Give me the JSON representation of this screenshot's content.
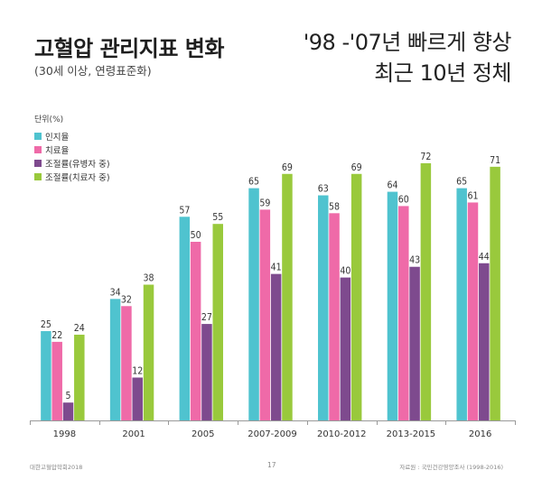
{
  "header": {
    "title": "고혈압 관리지표 변화",
    "subtitle": "(30세 이상, 연령표준화)",
    "headline_line1": "'98 -'07년 빠르게 향상",
    "headline_line2": "최근 10년 정체"
  },
  "footer": {
    "left": "대한고혈압학회2018",
    "page": "17",
    "source": "자료원 : 국민건강영양조사 (1998-2016)"
  },
  "chart_data": {
    "type": "bar",
    "title": "고혈압 관리지표 변화",
    "unit_label": "단위(%)",
    "xlabel": "",
    "ylabel": "",
    "ylim": [
      0,
      80
    ],
    "grid": false,
    "legend_position": "top-left",
    "categories": [
      "1998",
      "2001",
      "2005",
      "2007-2009",
      "2010-2012",
      "2013-2015",
      "2016"
    ],
    "series": [
      {
        "name": "인지율",
        "color": "#4fc3cf",
        "values": [
          25,
          34,
          57,
          65,
          63,
          64,
          65
        ]
      },
      {
        "name": "치료율",
        "color": "#ef6aa8",
        "values": [
          22,
          32,
          50,
          59,
          58,
          60,
          61
        ]
      },
      {
        "name": "조절률(유병자 중)",
        "color": "#7e4a8e",
        "values": [
          5,
          12,
          27,
          41,
          40,
          43,
          44
        ]
      },
      {
        "name": "조절률(치료자 중)",
        "color": "#99c93c",
        "values": [
          24,
          38,
          55,
          69,
          69,
          72,
          71
        ]
      }
    ]
  }
}
